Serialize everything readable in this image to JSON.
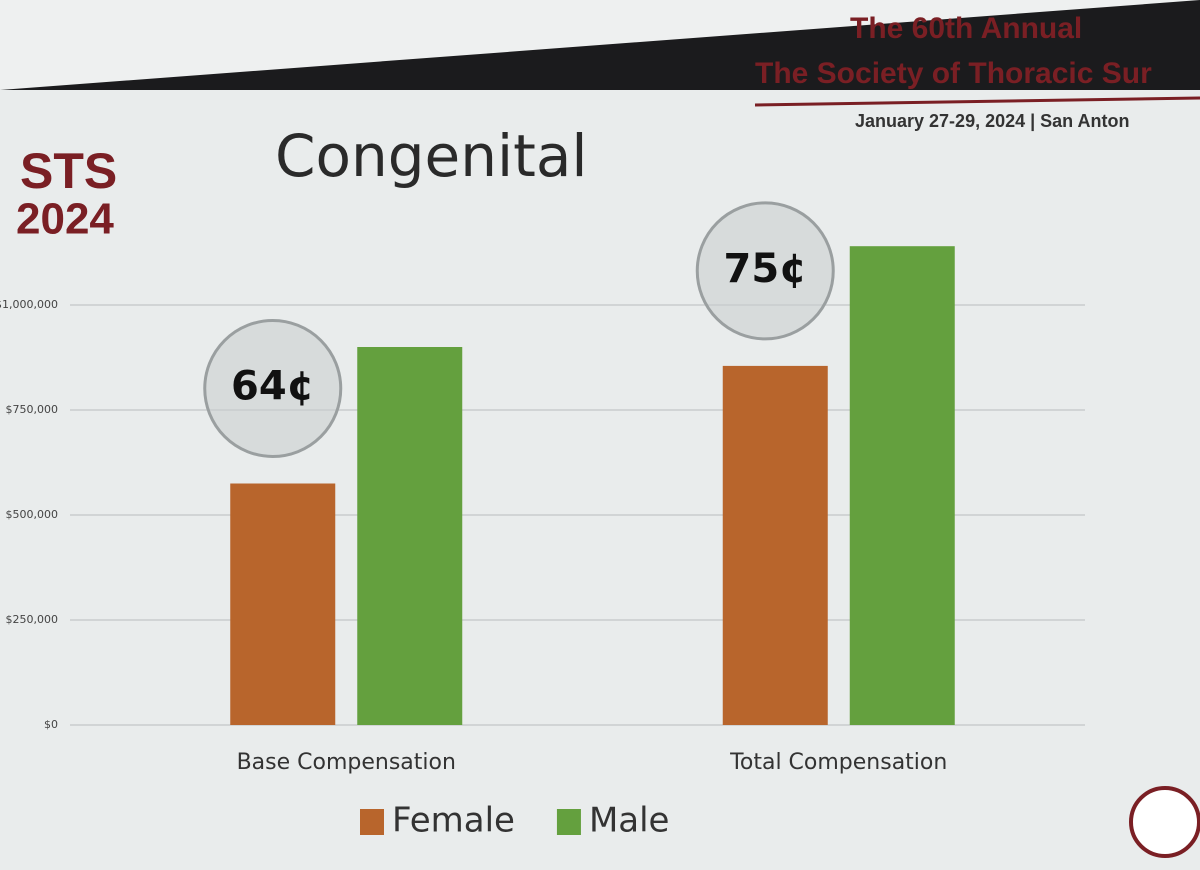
{
  "chart_data": {
    "type": "bar",
    "title": "Congenital",
    "header": [
      "The 60th Annual",
      "The Society of Thoracic Sur",
      "January 27-29, 2024 | San Anton"
    ],
    "logo": [
      "STS",
      "2024"
    ],
    "categories": [
      "Base Compensation",
      "Total Compensation"
    ],
    "series": [
      {
        "name": "Female",
        "color": "#b8652c",
        "values": [
          575000,
          855000
        ]
      },
      {
        "name": "Male",
        "color": "#64a03e",
        "values": [
          900000,
          1140000
        ]
      }
    ],
    "annotations": [
      "64¢",
      "75¢"
    ],
    "ylim": [
      0,
      1250000
    ],
    "yticks": [
      {
        "value": 0,
        "label": "$0"
      },
      {
        "value": 250000,
        "label": "$250,000"
      },
      {
        "value": 500000,
        "label": "$500,000"
      },
      {
        "value": 750000,
        "label": "$750,000"
      },
      {
        "value": 1000000,
        "label": "$1,000,000"
      }
    ],
    "grid": true,
    "legend": "bottom"
  }
}
